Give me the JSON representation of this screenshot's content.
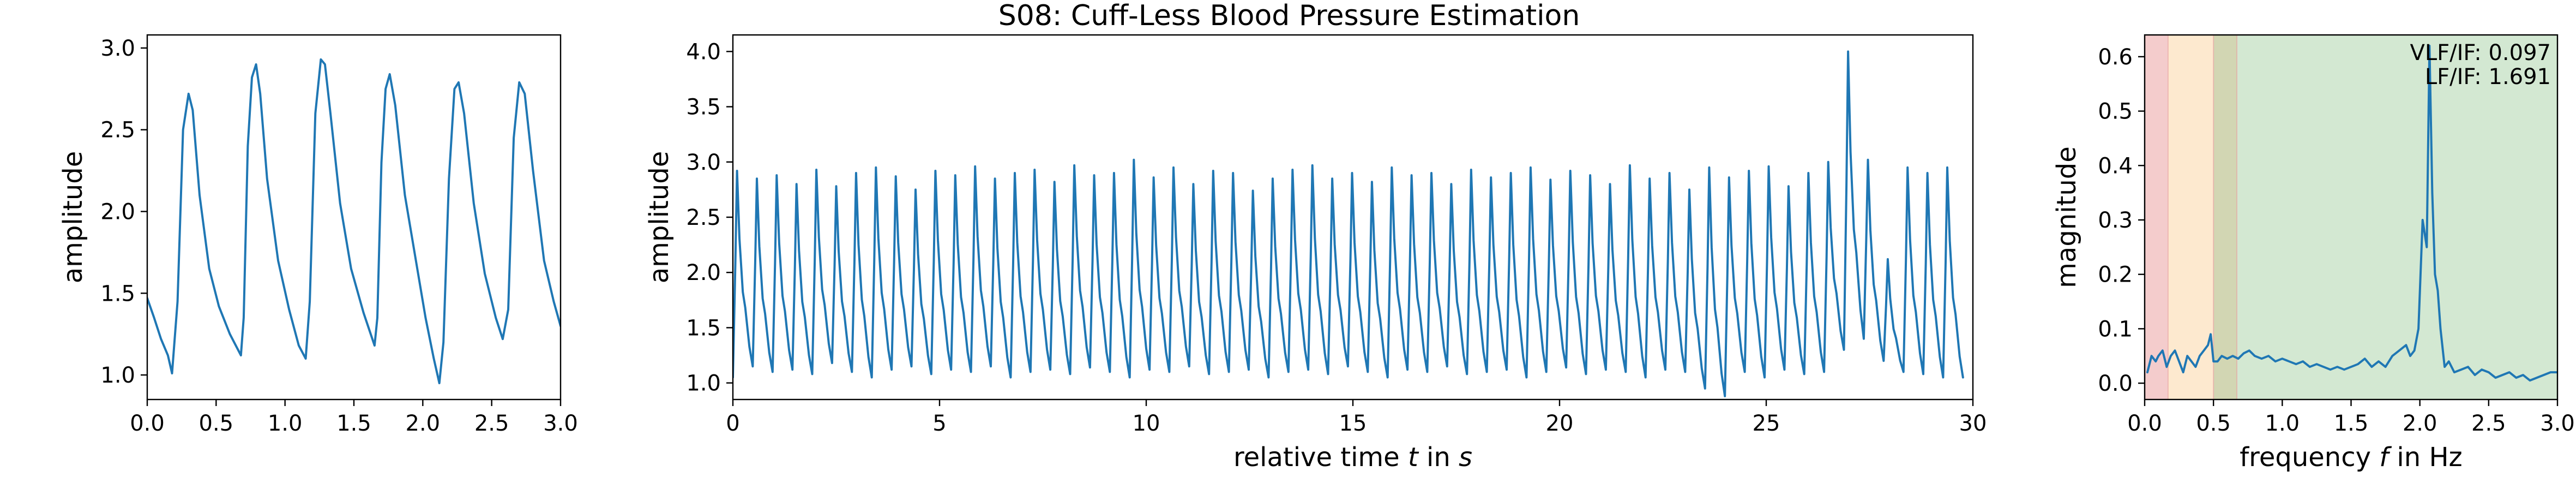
{
  "colors": {
    "line": "#1f77b4",
    "band_vlf": "#f4cccc",
    "band_lf": "#fde9cf",
    "band_overlap": "#d2d6b3",
    "band_hf": "#d3e8d2"
  },
  "chart_data": [
    {
      "id": "left",
      "type": "line",
      "title": "",
      "xlabel": "",
      "ylabel": "amplitude",
      "xlim": [
        0.0,
        3.0
      ],
      "ylim": [
        0.85,
        3.08
      ],
      "xticks": [
        0.0,
        0.5,
        1.0,
        1.5,
        2.0,
        2.5,
        3.0
      ],
      "xtick_labels": [
        "0.0",
        "0.5",
        "1.0",
        "1.5",
        "2.0",
        "2.5",
        "3.0"
      ],
      "yticks": [
        1.0,
        1.5,
        2.0,
        2.5,
        3.0
      ],
      "ytick_labels": [
        "1.0",
        "1.5",
        "2.0",
        "2.5",
        "3.0"
      ],
      "grid": false,
      "series": [
        {
          "x": [
            0.0,
            0.05,
            0.1,
            0.15,
            0.18,
            0.22,
            0.26,
            0.3,
            0.33,
            0.38,
            0.45,
            0.52,
            0.6,
            0.68,
            0.7,
            0.73,
            0.76,
            0.79,
            0.82,
            0.87,
            0.95,
            1.03,
            1.1,
            1.15,
            1.18,
            1.22,
            1.26,
            1.29,
            1.33,
            1.4,
            1.48,
            1.57,
            1.65,
            1.67,
            1.7,
            1.73,
            1.76,
            1.8,
            1.87,
            1.95,
            2.02,
            2.08,
            2.12,
            2.15,
            2.19,
            2.23,
            2.26,
            2.3,
            2.37,
            2.45,
            2.53,
            2.58,
            2.62,
            2.66,
            2.7,
            2.74,
            2.8,
            2.88,
            2.95,
            3.0
          ],
          "y": [
            1.47,
            1.35,
            1.22,
            1.12,
            1.01,
            1.45,
            2.5,
            2.72,
            2.62,
            2.1,
            1.65,
            1.42,
            1.25,
            1.12,
            1.35,
            2.4,
            2.82,
            2.9,
            2.72,
            2.2,
            1.7,
            1.4,
            1.18,
            1.1,
            1.45,
            2.6,
            2.93,
            2.9,
            2.6,
            2.05,
            1.65,
            1.38,
            1.18,
            1.35,
            2.3,
            2.75,
            2.84,
            2.65,
            2.1,
            1.7,
            1.35,
            1.1,
            0.95,
            1.2,
            2.2,
            2.75,
            2.79,
            2.6,
            2.05,
            1.62,
            1.35,
            1.22,
            1.4,
            2.45,
            2.79,
            2.72,
            2.25,
            1.7,
            1.45,
            1.3
          ]
        }
      ]
    },
    {
      "id": "middle",
      "type": "line",
      "title": "S08: Cuff-Less Blood Pressure Estimation",
      "xlabel": "relative time t in s",
      "ylabel": "amplitude",
      "xlim": [
        0,
        30
      ],
      "ylim": [
        0.85,
        4.15
      ],
      "xticks": [
        0,
        5,
        10,
        15,
        20,
        25,
        30
      ],
      "xtick_labels": [
        "0",
        "5",
        "10",
        "15",
        "20",
        "25",
        "30"
      ],
      "yticks": [
        1.0,
        1.5,
        2.0,
        2.5,
        3.0,
        3.5,
        4.0
      ],
      "ytick_labels": [
        "1.0",
        "1.5",
        "2.0",
        "2.5",
        "3.0",
        "3.5",
        "4.0"
      ],
      "grid": false,
      "series": [
        {
          "beat_period_s": 0.48,
          "beat_peak_values": [
            2.92,
            2.85,
            2.88,
            2.8,
            2.93,
            2.78,
            2.9,
            2.95,
            2.87,
            2.75,
            2.92,
            2.88,
            2.96,
            2.85,
            2.9,
            2.93,
            2.82,
            2.97,
            2.88,
            2.9,
            3.02,
            2.86,
            2.95,
            2.8,
            2.92,
            2.9,
            2.74,
            2.85,
            2.93,
            2.97,
            2.85,
            2.9,
            2.82,
            2.95,
            2.88,
            2.9,
            2.8,
            2.93,
            2.86,
            2.9,
            2.95,
            2.84,
            2.92,
            2.88,
            2.8,
            2.97,
            2.85,
            2.9,
            2.75,
            2.95,
            2.86,
            2.92,
            2.96,
            2.78,
            2.9,
            3.0,
            4.0,
            3.02,
            2.12,
            2.95,
            2.9,
            2.95
          ],
          "beat_trough_values": [
            1.05,
            1.15,
            1.1,
            1.12,
            1.08,
            1.18,
            1.1,
            1.05,
            1.12,
            1.15,
            1.08,
            1.12,
            1.1,
            1.15,
            1.05,
            1.1,
            1.12,
            1.08,
            1.14,
            1.1,
            1.05,
            1.12,
            1.1,
            1.15,
            1.08,
            1.1,
            1.12,
            1.05,
            1.1,
            1.12,
            1.08,
            1.15,
            1.1,
            1.05,
            1.12,
            1.1,
            1.15,
            1.08,
            1.1,
            1.12,
            1.05,
            1.1,
            1.14,
            1.08,
            1.12,
            1.1,
            1.05,
            1.12,
            1.1,
            0.95,
            0.88,
            1.1,
            1.05,
            1.12,
            1.08,
            1.1,
            1.3,
            1.4,
            1.2,
            1.1,
            1.08,
            1.05
          ]
        }
      ]
    },
    {
      "id": "right",
      "type": "line",
      "title": "",
      "xlabel": "frequency f in Hz",
      "ylabel": "magnitude",
      "xlim": [
        0.0,
        3.0
      ],
      "ylim": [
        -0.03,
        0.64
      ],
      "xticks": [
        0.0,
        0.5,
        1.0,
        1.5,
        2.0,
        2.5,
        3.0
      ],
      "xtick_labels": [
        "0.0",
        "0.5",
        "1.0",
        "1.5",
        "2.0",
        "2.5",
        "3.0"
      ],
      "yticks": [
        0.0,
        0.1,
        0.2,
        0.3,
        0.4,
        0.5,
        0.6
      ],
      "ytick_labels": [
        "0.0",
        "0.1",
        "0.2",
        "0.3",
        "0.4",
        "0.5",
        "0.6"
      ],
      "grid": false,
      "bands": [
        {
          "name": "VLF",
          "range": [
            0.0,
            0.17
          ]
        },
        {
          "name": "LF",
          "range": [
            0.17,
            0.5
          ]
        },
        {
          "name": "overlap",
          "range": [
            0.5,
            0.67
          ]
        },
        {
          "name": "HF",
          "range": [
            0.67,
            3.0
          ]
        }
      ],
      "annotations": [
        "VLF/IF: 0.097",
        "LF/IF: 1.691"
      ],
      "series": [
        {
          "x": [
            0.02,
            0.05,
            0.08,
            0.1,
            0.13,
            0.16,
            0.19,
            0.22,
            0.25,
            0.28,
            0.31,
            0.34,
            0.37,
            0.4,
            0.43,
            0.46,
            0.48,
            0.5,
            0.53,
            0.56,
            0.6,
            0.64,
            0.68,
            0.72,
            0.76,
            0.8,
            0.85,
            0.9,
            0.95,
            1.0,
            1.05,
            1.1,
            1.15,
            1.2,
            1.25,
            1.3,
            1.35,
            1.4,
            1.45,
            1.5,
            1.55,
            1.6,
            1.65,
            1.7,
            1.75,
            1.8,
            1.85,
            1.9,
            1.93,
            1.96,
            1.99,
            2.02,
            2.05,
            2.07,
            2.09,
            2.11,
            2.13,
            2.15,
            2.18,
            2.21,
            2.25,
            2.3,
            2.35,
            2.4,
            2.45,
            2.5,
            2.55,
            2.6,
            2.65,
            2.7,
            2.75,
            2.8,
            2.85,
            2.9,
            2.95,
            3.0
          ],
          "y": [
            0.02,
            0.05,
            0.04,
            0.05,
            0.06,
            0.03,
            0.05,
            0.06,
            0.04,
            0.02,
            0.05,
            0.04,
            0.03,
            0.05,
            0.06,
            0.07,
            0.09,
            0.04,
            0.04,
            0.05,
            0.045,
            0.05,
            0.045,
            0.055,
            0.06,
            0.05,
            0.045,
            0.05,
            0.04,
            0.045,
            0.04,
            0.035,
            0.04,
            0.03,
            0.035,
            0.03,
            0.025,
            0.03,
            0.025,
            0.03,
            0.035,
            0.045,
            0.03,
            0.04,
            0.03,
            0.05,
            0.06,
            0.07,
            0.05,
            0.06,
            0.1,
            0.3,
            0.25,
            0.62,
            0.35,
            0.2,
            0.17,
            0.1,
            0.03,
            0.04,
            0.02,
            0.025,
            0.03,
            0.015,
            0.025,
            0.02,
            0.01,
            0.015,
            0.02,
            0.01,
            0.015,
            0.005,
            0.01,
            0.015,
            0.02,
            0.02
          ]
        }
      ]
    }
  ]
}
